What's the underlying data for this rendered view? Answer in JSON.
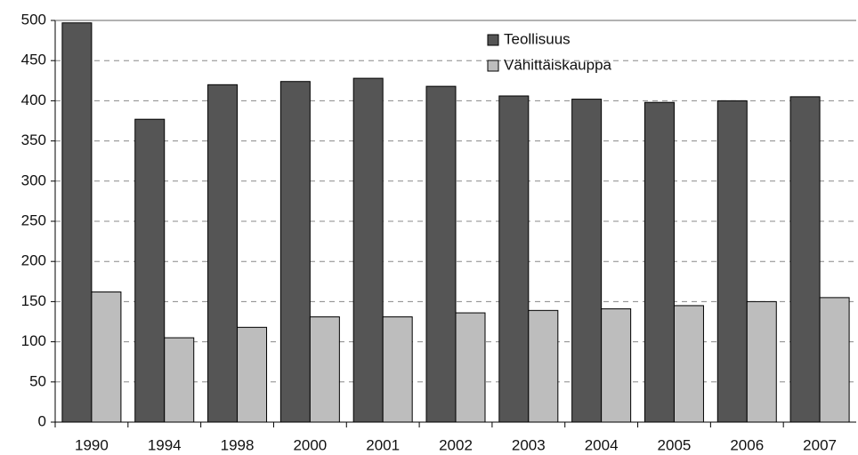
{
  "chart_data": {
    "type": "bar",
    "categories": [
      "1990",
      "1994",
      "1998",
      "2000",
      "2001",
      "2002",
      "2003",
      "2004",
      "2005",
      "2006",
      "2007"
    ],
    "series": [
      {
        "name": "Teollisuus",
        "color": "#555555",
        "values": [
          497,
          377,
          420,
          424,
          428,
          418,
          406,
          402,
          398,
          400,
          405
        ]
      },
      {
        "name": "Vähittäiskauppa",
        "color": "#bdbdbd",
        "values": [
          162,
          105,
          118,
          131,
          131,
          136,
          139,
          141,
          145,
          150,
          155
        ]
      }
    ],
    "ylim": [
      0,
      500
    ],
    "yticks": [
      0,
      50,
      100,
      150,
      200,
      250,
      300,
      350,
      400,
      450,
      500
    ],
    "grid": true,
    "legend": "top"
  }
}
